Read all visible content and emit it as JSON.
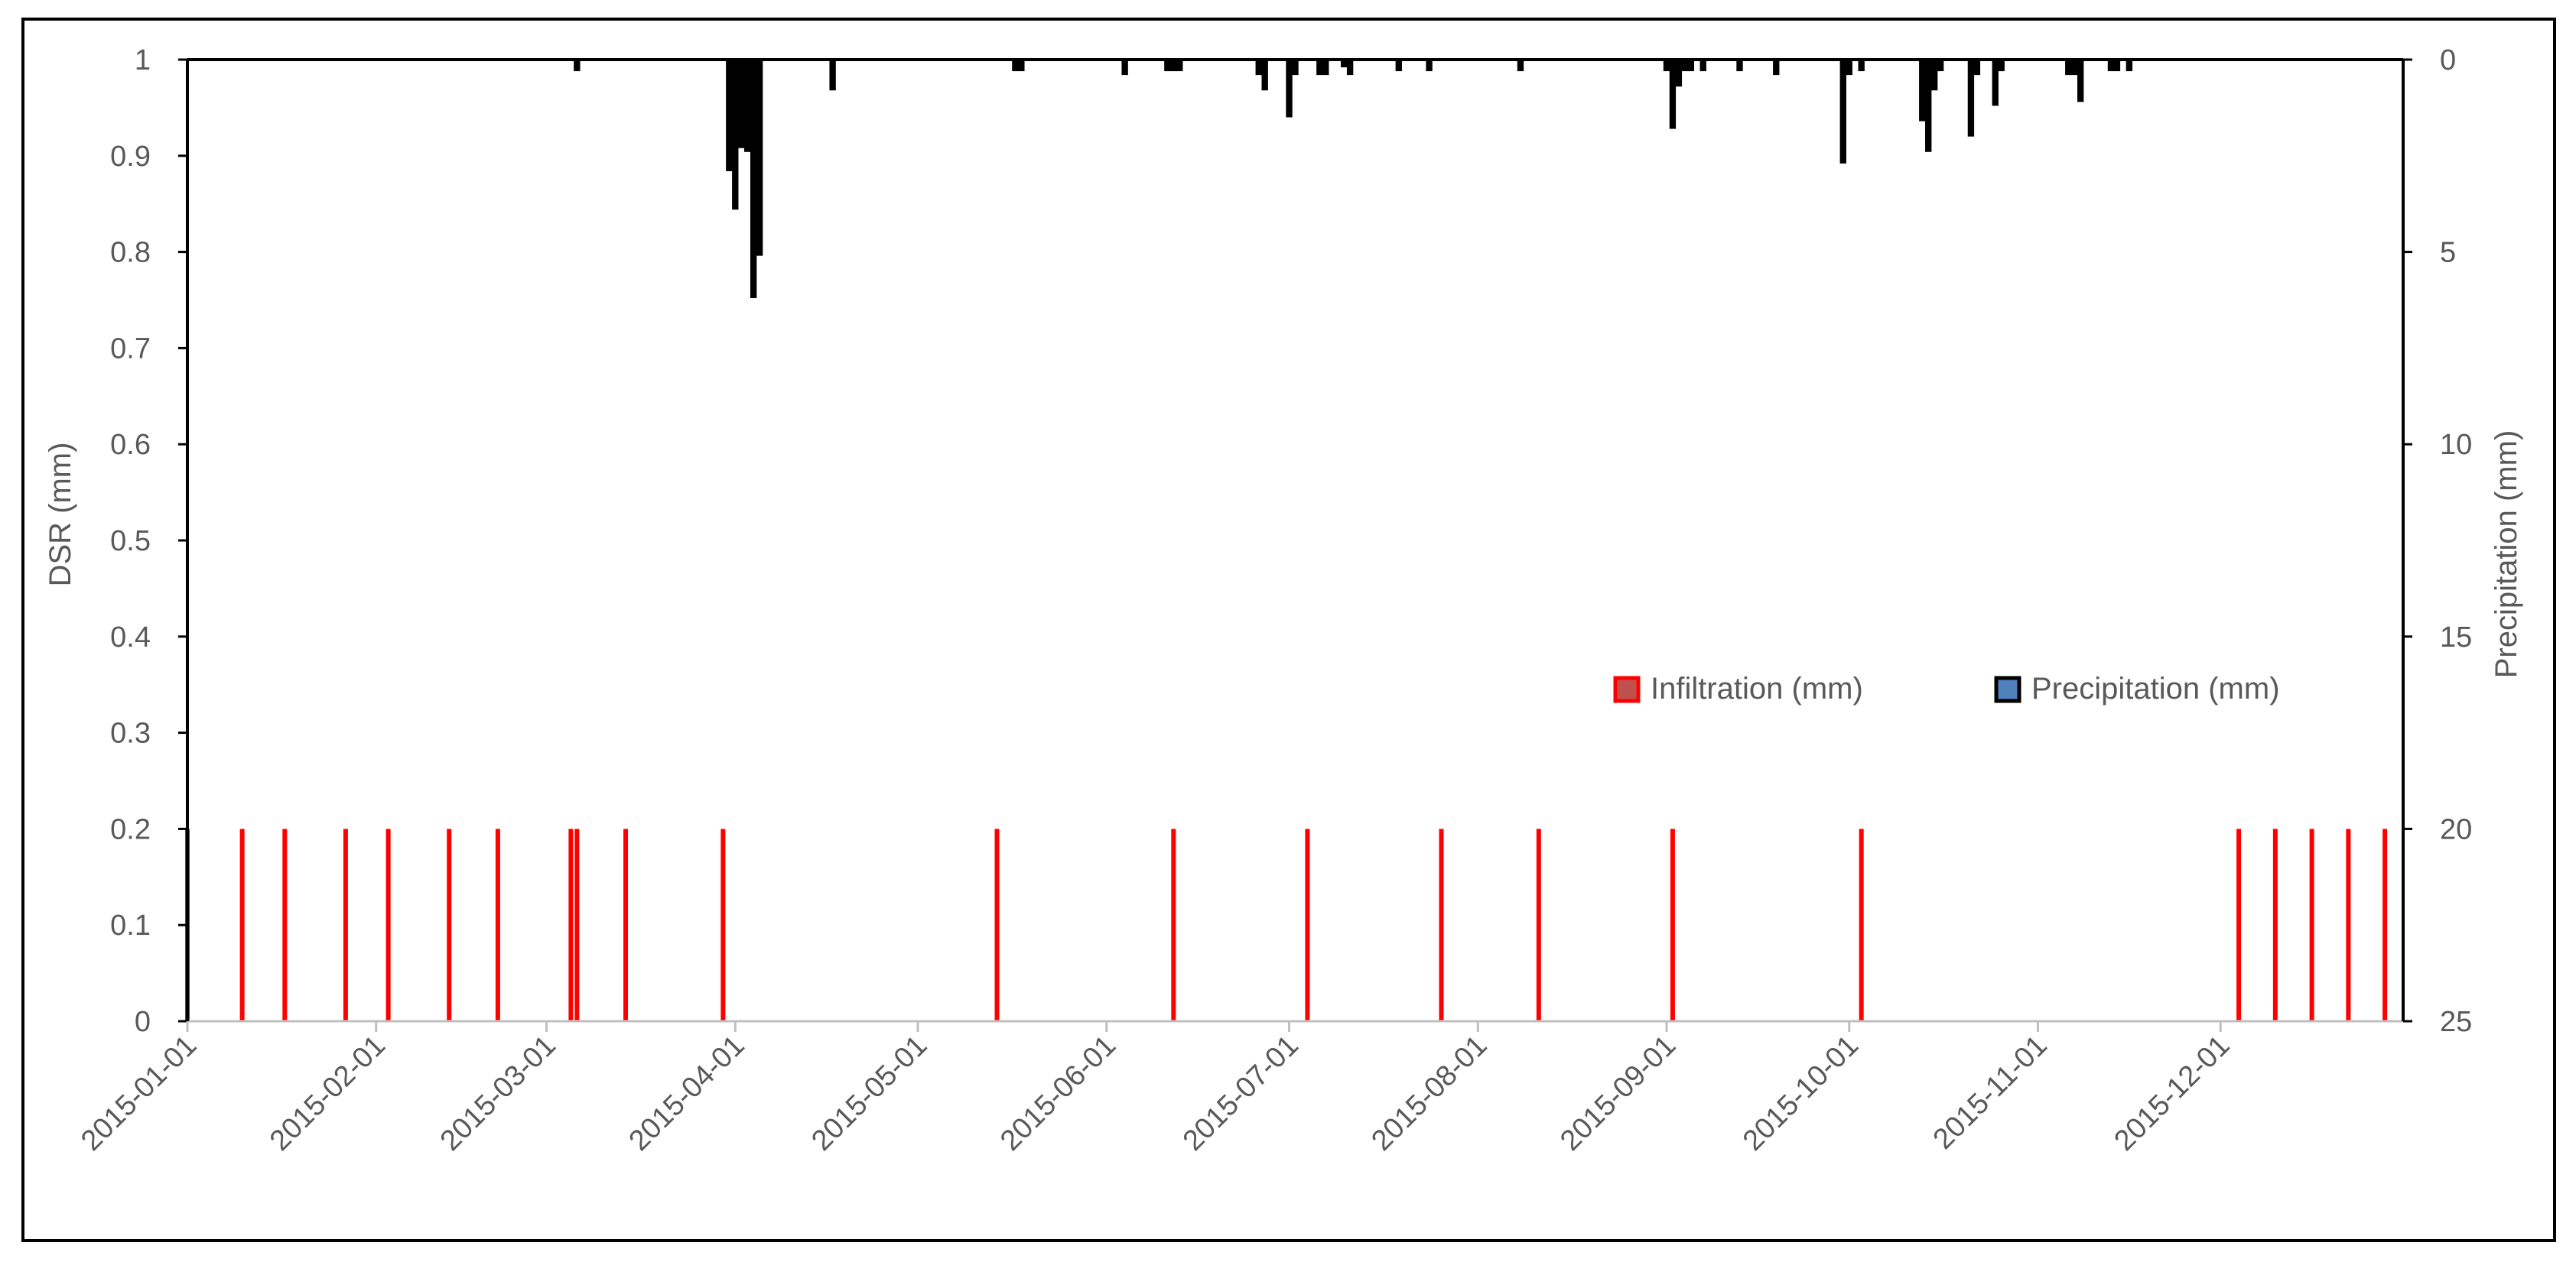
{
  "chart_data": {
    "type": "bar",
    "x_axis": {
      "tick_labels": [
        "2015-01-01",
        "2015-02-01",
        "2015-03-01",
        "2015-04-01",
        "2015-05-01",
        "2015-06-01",
        "2015-07-01",
        "2015-08-01",
        "2015-09-01",
        "2015-10-01",
        "2015-11-01",
        "2015-12-01"
      ],
      "range": [
        "2015-01-01",
        "2015-12-31"
      ]
    },
    "y_left": {
      "label": "DSR (mm)",
      "ylim": [
        0,
        1
      ],
      "ticks": [
        "0",
        "0.1",
        "0.2",
        "0.3",
        "0.4",
        "0.5",
        "0.6",
        "0.7",
        "0.8",
        "0.9",
        "1"
      ]
    },
    "y_right": {
      "label": "Precipitation (mm)",
      "ylim": [
        0,
        25
      ],
      "inverted": true,
      "ticks": [
        "0",
        "5",
        "10",
        "15",
        "20",
        "25"
      ]
    },
    "grid": false,
    "legend": {
      "placement": "center-right",
      "entries": [
        "Infiltration (mm)",
        "Precipitation (mm)"
      ]
    },
    "series": [
      {
        "name": "Infiltration (mm)",
        "axis": "left",
        "color": "#ff0000",
        "points": [
          {
            "x": "2015-01-01",
            "y": 0.2
          },
          {
            "x": "2015-01-10",
            "y": 0.2
          },
          {
            "x": "2015-01-17",
            "y": 0.2
          },
          {
            "x": "2015-01-27",
            "y": 0.2
          },
          {
            "x": "2015-02-03",
            "y": 0.2
          },
          {
            "x": "2015-02-13",
            "y": 0.2
          },
          {
            "x": "2015-02-21",
            "y": 0.2
          },
          {
            "x": "2015-03-05",
            "y": 0.2
          },
          {
            "x": "2015-03-06",
            "y": 0.2
          },
          {
            "x": "2015-03-14",
            "y": 0.2
          },
          {
            "x": "2015-03-30",
            "y": 0.2
          },
          {
            "x": "2015-05-14",
            "y": 0.2
          },
          {
            "x": "2015-06-12",
            "y": 0.2
          },
          {
            "x": "2015-07-04",
            "y": 0.2
          },
          {
            "x": "2015-07-26",
            "y": 0.2
          },
          {
            "x": "2015-08-11",
            "y": 0.2
          },
          {
            "x": "2015-09-02",
            "y": 0.2
          },
          {
            "x": "2015-10-03",
            "y": 0.2
          },
          {
            "x": "2015-12-04",
            "y": 0.2
          },
          {
            "x": "2015-12-10",
            "y": 0.2
          },
          {
            "x": "2015-12-16",
            "y": 0.2
          },
          {
            "x": "2015-12-22",
            "y": 0.2
          },
          {
            "x": "2015-12-28",
            "y": 0.2
          }
        ]
      },
      {
        "name": "Precipitation (mm)",
        "axis": "right",
        "color": "#000000",
        "points": [
          {
            "x": "2015-03-06",
            "y": 0.3
          },
          {
            "x": "2015-03-31",
            "y": 2.9
          },
          {
            "x": "2015-04-01",
            "y": 3.9
          },
          {
            "x": "2015-04-02",
            "y": 2.3
          },
          {
            "x": "2015-04-03",
            "y": 2.4
          },
          {
            "x": "2015-04-04",
            "y": 6.2
          },
          {
            "x": "2015-04-05",
            "y": 5.1
          },
          {
            "x": "2015-04-17",
            "y": 0.8
          },
          {
            "x": "2015-05-17",
            "y": 0.3
          },
          {
            "x": "2015-05-18",
            "y": 0.3
          },
          {
            "x": "2015-06-04",
            "y": 0.4
          },
          {
            "x": "2015-06-11",
            "y": 0.3
          },
          {
            "x": "2015-06-12",
            "y": 0.3
          },
          {
            "x": "2015-06-13",
            "y": 0.3
          },
          {
            "x": "2015-06-26",
            "y": 0.4
          },
          {
            "x": "2015-06-27",
            "y": 0.8
          },
          {
            "x": "2015-07-01",
            "y": 1.5
          },
          {
            "x": "2015-07-02",
            "y": 0.4
          },
          {
            "x": "2015-07-06",
            "y": 0.4
          },
          {
            "x": "2015-07-07",
            "y": 0.4
          },
          {
            "x": "2015-07-10",
            "y": 0.2
          },
          {
            "x": "2015-07-11",
            "y": 0.4
          },
          {
            "x": "2015-07-19",
            "y": 0.3
          },
          {
            "x": "2015-07-24",
            "y": 0.3
          },
          {
            "x": "2015-08-08",
            "y": 0.3
          },
          {
            "x": "2015-09-01",
            "y": 0.3
          },
          {
            "x": "2015-09-02",
            "y": 1.8
          },
          {
            "x": "2015-09-03",
            "y": 0.7
          },
          {
            "x": "2015-09-04",
            "y": 0.3
          },
          {
            "x": "2015-09-05",
            "y": 0.3
          },
          {
            "x": "2015-09-07",
            "y": 0.3
          },
          {
            "x": "2015-09-13",
            "y": 0.3
          },
          {
            "x": "2015-09-19",
            "y": 0.4
          },
          {
            "x": "2015-09-30",
            "y": 2.7
          },
          {
            "x": "2015-10-01",
            "y": 0.4
          },
          {
            "x": "2015-10-03",
            "y": 0.3
          },
          {
            "x": "2015-10-13",
            "y": 1.6
          },
          {
            "x": "2015-10-14",
            "y": 2.4
          },
          {
            "x": "2015-10-15",
            "y": 0.8
          },
          {
            "x": "2015-10-16",
            "y": 0.3
          },
          {
            "x": "2015-10-21",
            "y": 2.0
          },
          {
            "x": "2015-10-22",
            "y": 0.4
          },
          {
            "x": "2015-10-25",
            "y": 1.2
          },
          {
            "x": "2015-10-26",
            "y": 0.3
          },
          {
            "x": "2015-11-06",
            "y": 0.4
          },
          {
            "x": "2015-11-07",
            "y": 0.4
          },
          {
            "x": "2015-11-08",
            "y": 1.1
          },
          {
            "x": "2015-11-13",
            "y": 0.3
          },
          {
            "x": "2015-11-14",
            "y": 0.3
          },
          {
            "x": "2015-11-16",
            "y": 0.3
          }
        ]
      }
    ]
  }
}
